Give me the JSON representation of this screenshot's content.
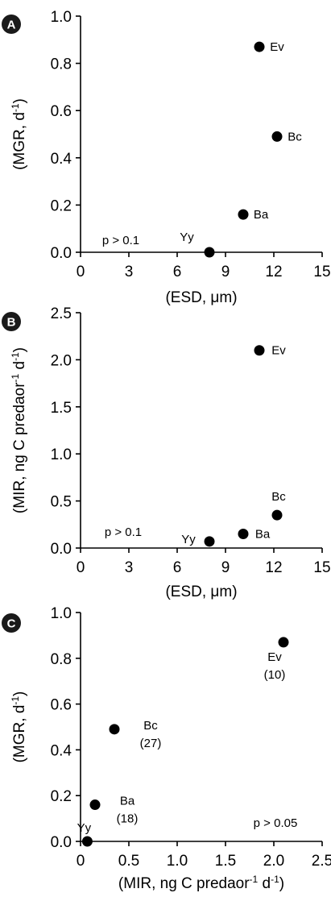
{
  "chart_data": [
    {
      "panel": "A",
      "type": "scatter",
      "xlabel": "(ESD, μm)",
      "ylabel": "(MGR, d⁻¹)",
      "xlim": [
        0,
        15
      ],
      "ylim": [
        0,
        1.0
      ],
      "xticks": [
        "0",
        "3",
        "6",
        "9",
        "12",
        "15"
      ],
      "yticks": [
        "0.0",
        "0.2",
        "0.4",
        "0.6",
        "0.8",
        "1.0"
      ],
      "stat_note": "p > 0.1",
      "points": [
        {
          "label": "Yy",
          "x": 8.0,
          "y": 0.0
        },
        {
          "label": "Ba",
          "x": 10.1,
          "y": 0.16
        },
        {
          "label": "Ev",
          "x": 11.1,
          "y": 0.87
        },
        {
          "label": "Bc",
          "x": 12.2,
          "y": 0.49
        }
      ]
    },
    {
      "panel": "B",
      "type": "scatter",
      "xlabel": "(ESD, μm)",
      "ylabel": "(MIR, ng C predaor⁻¹ d⁻¹)",
      "xlim": [
        0,
        15
      ],
      "ylim": [
        0,
        2.5
      ],
      "xticks": [
        "0",
        "3",
        "6",
        "9",
        "12",
        "15"
      ],
      "yticks": [
        "0.0",
        "0.5",
        "1.0",
        "1.5",
        "2.0",
        "2.5"
      ],
      "stat_note": "p > 0.1",
      "points": [
        {
          "label": "Yy",
          "x": 8.0,
          "y": 0.07
        },
        {
          "label": "Ba",
          "x": 10.1,
          "y": 0.15
        },
        {
          "label": "Ev",
          "x": 11.1,
          "y": 2.1
        },
        {
          "label": "Bc",
          "x": 12.2,
          "y": 0.35
        }
      ]
    },
    {
      "panel": "C",
      "type": "scatter",
      "xlabel": "(MIR, ng C predaor⁻¹ d⁻¹)",
      "ylabel": "(MGR, d⁻¹)",
      "xlim": [
        0,
        2.5
      ],
      "ylim": [
        0,
        1.0
      ],
      "xticks": [
        "0",
        "0.5",
        "1.0",
        "1.5",
        "2.0",
        "2.5"
      ],
      "yticks": [
        "0.0",
        "0.2",
        "0.4",
        "0.6",
        "0.8",
        "1.0"
      ],
      "stat_note": "p > 0.05",
      "points": [
        {
          "label": "Yy",
          "sub": "",
          "x": 0.07,
          "y": 0.0
        },
        {
          "label": "Ba",
          "sub": "(18)",
          "x": 0.15,
          "y": 0.16
        },
        {
          "label": "Bc",
          "sub": "(27)",
          "x": 0.35,
          "y": 0.49
        },
        {
          "label": "Ev",
          "sub": "(10)",
          "x": 2.1,
          "y": 0.87
        }
      ]
    }
  ]
}
